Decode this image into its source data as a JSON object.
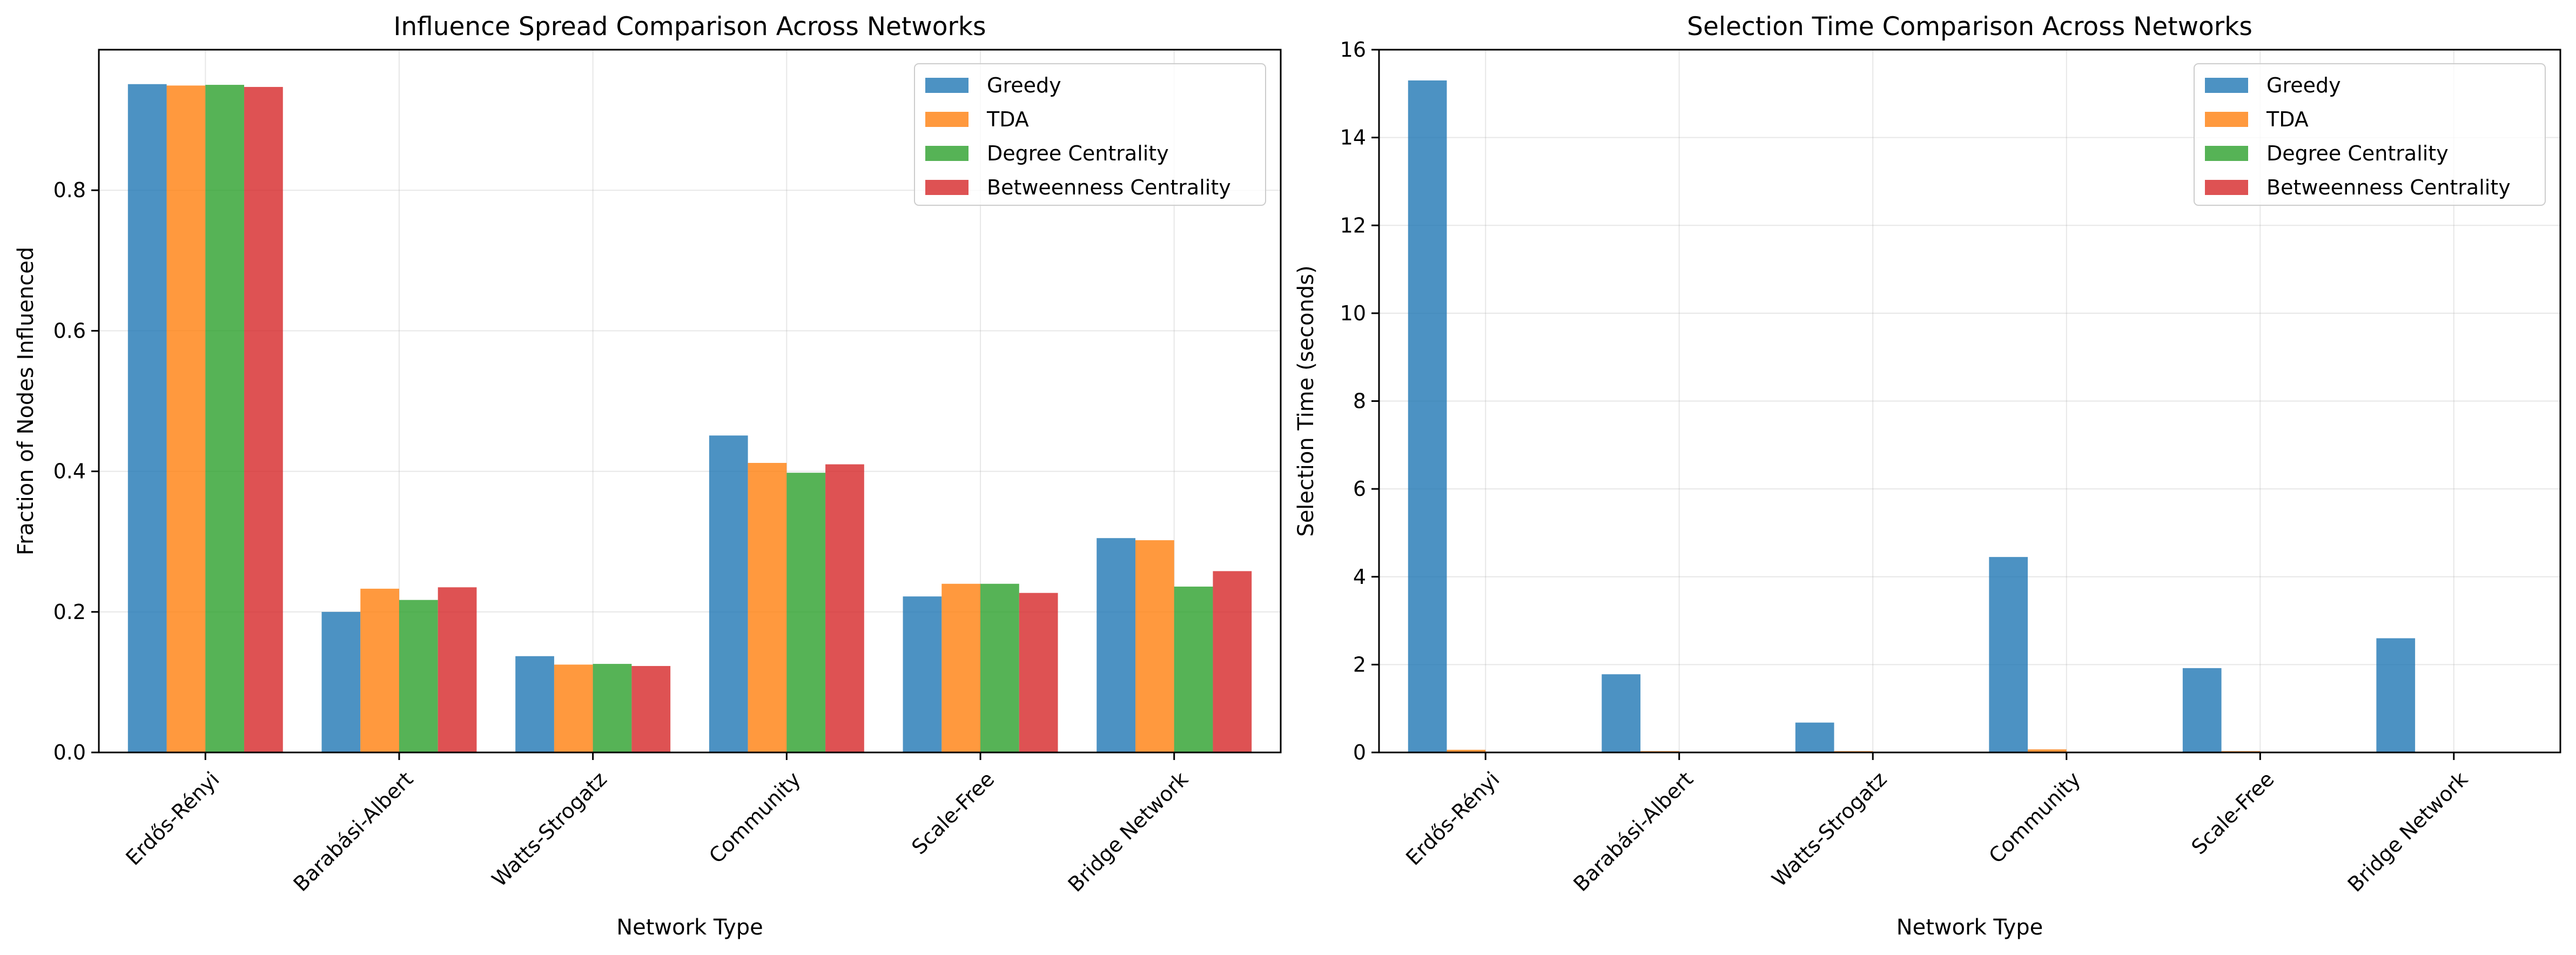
{
  "colors": {
    "Greedy": "#1f77b4",
    "TDA": "#ff7f0e",
    "Degree Centrality": "#2ca02c",
    "Betweenness Centrality": "#d62728"
  },
  "chart_data": [
    {
      "type": "bar",
      "title": "Influence Spread Comparison Across Networks",
      "xlabel": "Network Type",
      "ylabel": "Fraction of Nodes Influenced",
      "ylim": [
        0,
        1.0
      ],
      "yticks": [
        "0.0",
        "0.2",
        "0.4",
        "0.6",
        "0.8"
      ],
      "grid": true,
      "legend": "top-right",
      "categories": [
        "Erdős-Rényi",
        "Barabási-Albert",
        "Watts-Strogatz",
        "Community",
        "Scale-Free",
        "Bridge Network"
      ],
      "series": [
        {
          "name": "Greedy",
          "values": [
            0.951,
            0.2,
            0.137,
            0.451,
            0.222,
            0.305
          ]
        },
        {
          "name": "TDA",
          "values": [
            0.949,
            0.233,
            0.125,
            0.412,
            0.24,
            0.302
          ]
        },
        {
          "name": "Degree Centrality",
          "values": [
            0.95,
            0.217,
            0.126,
            0.398,
            0.24,
            0.236
          ]
        },
        {
          "name": "Betweenness Centrality",
          "values": [
            0.947,
            0.235,
            0.123,
            0.41,
            0.227,
            0.258
          ]
        }
      ]
    },
    {
      "type": "bar",
      "title": "Selection Time Comparison Across Networks",
      "xlabel": "Network Type",
      "ylabel": "Selection Time (seconds)",
      "ylim": [
        0,
        16.0
      ],
      "yticks": [
        "0",
        "2",
        "4",
        "6",
        "8",
        "10",
        "12",
        "14",
        "16"
      ],
      "grid": true,
      "legend": "top-right",
      "categories": [
        "Erdős-Rényi",
        "Barabási-Albert",
        "Watts-Strogatz",
        "Community",
        "Scale-Free",
        "Bridge Network"
      ],
      "series": [
        {
          "name": "Greedy",
          "values": [
            15.3,
            1.78,
            0.68,
            4.45,
            1.92,
            2.6
          ]
        },
        {
          "name": "TDA",
          "values": [
            0.06,
            0.03,
            0.03,
            0.07,
            0.03,
            0.01
          ]
        },
        {
          "name": "Degree Centrality",
          "values": [
            0.0,
            0.0,
            0.0,
            0.0,
            0.0,
            0.0
          ]
        },
        {
          "name": "Betweenness Centrality",
          "values": [
            0.01,
            0.0,
            0.0,
            0.01,
            0.0,
            0.0
          ]
        }
      ]
    }
  ]
}
